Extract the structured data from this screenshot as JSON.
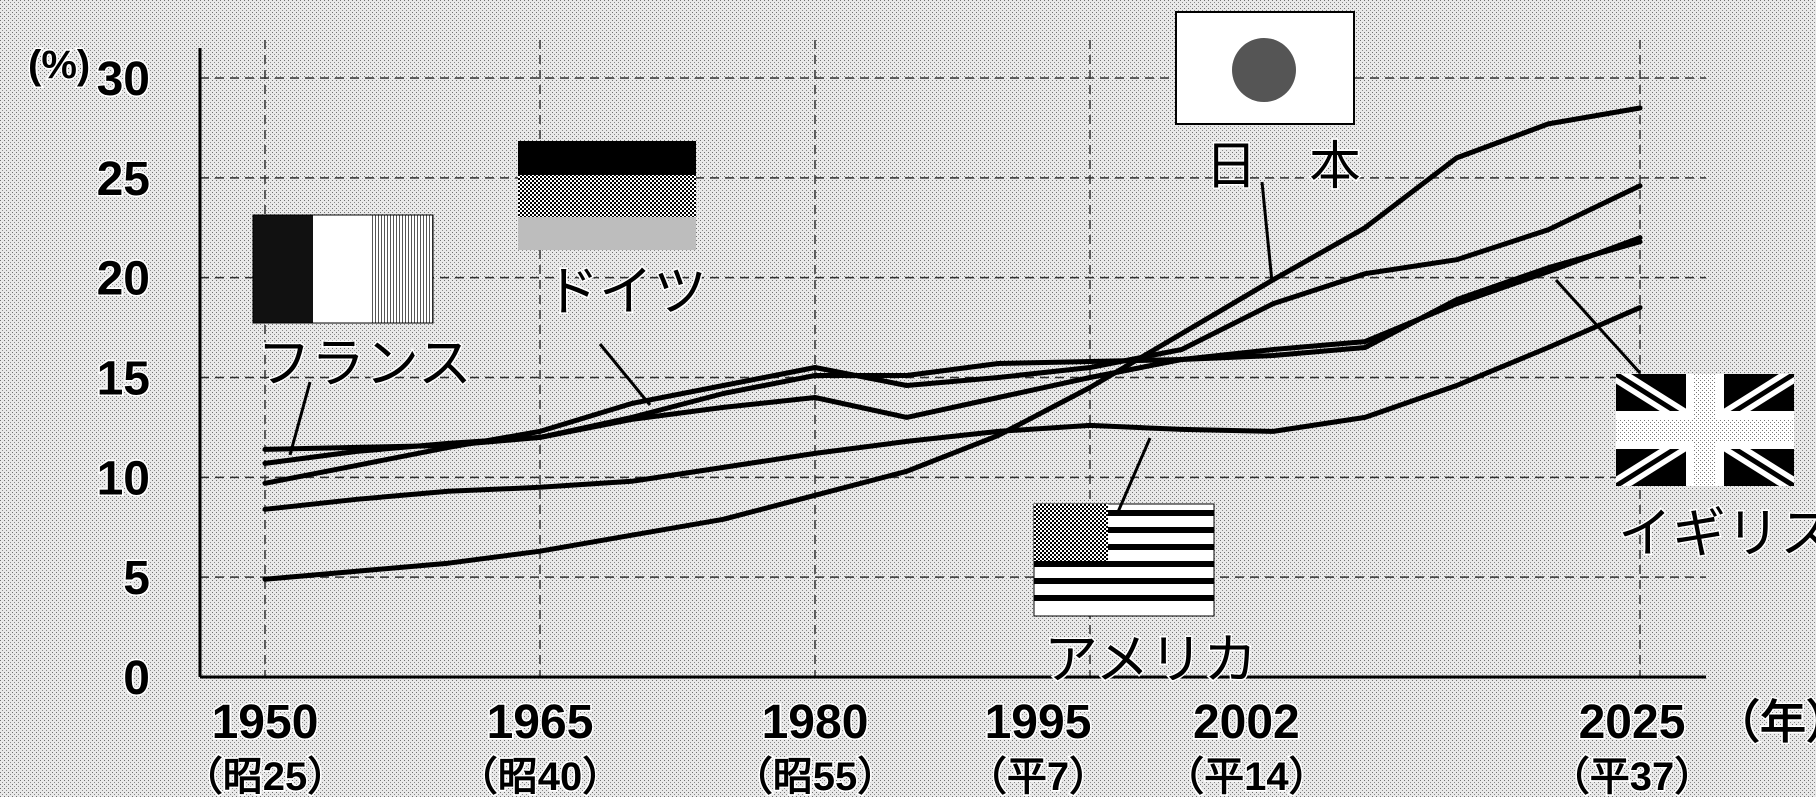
{
  "chart_data": {
    "type": "line",
    "ylabel": "(%)",
    "xlabel_unit": "（年）",
    "ylim": [
      0,
      30
    ],
    "y_ticks": [
      "0",
      "5",
      "10",
      "15",
      "20",
      "25",
      "30"
    ],
    "x_ticks": [
      {
        "year": "1950",
        "era": "（昭25）"
      },
      {
        "year": "1965",
        "era": "（昭40）"
      },
      {
        "year": "1980",
        "era": "（昭55）"
      },
      {
        "year": "1995",
        "era": "（平7）"
      },
      {
        "year": "2002",
        "era": "（平14）"
      },
      {
        "year": "2025",
        "era": "（平37）"
      }
    ],
    "grid": true,
    "series": [
      {
        "name": "日　本",
        "points": [
          [
            1950,
            4.9
          ],
          [
            1955,
            5.3
          ],
          [
            1960,
            5.7
          ],
          [
            1965,
            6.3
          ],
          [
            1970,
            7.1
          ],
          [
            1975,
            7.9
          ],
          [
            1980,
            9.1
          ],
          [
            1985,
            10.3
          ],
          [
            1990,
            12.1
          ],
          [
            1995,
            14.5
          ],
          [
            2000,
            17.2
          ],
          [
            2005,
            19.9
          ],
          [
            2010,
            22.5
          ],
          [
            2015,
            26.0
          ],
          [
            2020,
            27.7
          ],
          [
            2025,
            28.5
          ]
        ]
      },
      {
        "name": "ドイツ",
        "points": [
          [
            1950,
            9.7
          ],
          [
            1955,
            10.6
          ],
          [
            1960,
            11.5
          ],
          [
            1965,
            12.3
          ],
          [
            1970,
            13.7
          ],
          [
            1975,
            14.6
          ],
          [
            1980,
            15.5
          ],
          [
            1985,
            14.6
          ],
          [
            1990,
            15.0
          ],
          [
            1995,
            15.5
          ],
          [
            2000,
            16.4
          ],
          [
            2005,
            18.7
          ],
          [
            2010,
            20.2
          ],
          [
            2015,
            20.9
          ],
          [
            2020,
            22.4
          ],
          [
            2025,
            24.6
          ]
        ]
      },
      {
        "name": "フランス",
        "points": [
          [
            1950,
            11.4
          ],
          [
            1955,
            11.5
          ],
          [
            1960,
            11.6
          ],
          [
            1965,
            12.0
          ],
          [
            1970,
            12.9
          ],
          [
            1975,
            13.5
          ],
          [
            1980,
            14.0
          ],
          [
            1985,
            13.0
          ],
          [
            1990,
            14.0
          ],
          [
            1995,
            15.0
          ],
          [
            2000,
            15.9
          ],
          [
            2005,
            16.4
          ],
          [
            2010,
            16.8
          ],
          [
            2015,
            18.7
          ],
          [
            2020,
            20.3
          ],
          [
            2025,
            22.0
          ]
        ]
      },
      {
        "name": "イギリス",
        "points": [
          [
            1950,
            10.7
          ],
          [
            1955,
            11.3
          ],
          [
            1960,
            11.7
          ],
          [
            1965,
            12.0
          ],
          [
            1970,
            13.0
          ],
          [
            1975,
            14.2
          ],
          [
            1980,
            15.1
          ],
          [
            1985,
            15.1
          ],
          [
            1990,
            15.7
          ],
          [
            1995,
            15.8
          ],
          [
            2000,
            15.9
          ],
          [
            2005,
            16.1
          ],
          [
            2010,
            16.5
          ],
          [
            2015,
            18.9
          ],
          [
            2020,
            20.5
          ],
          [
            2025,
            21.8
          ]
        ]
      },
      {
        "name": "アメリカ",
        "points": [
          [
            1950,
            8.4
          ],
          [
            1955,
            8.9
          ],
          [
            1960,
            9.3
          ],
          [
            1965,
            9.5
          ],
          [
            1970,
            9.8
          ],
          [
            1975,
            10.5
          ],
          [
            1980,
            11.2
          ],
          [
            1985,
            11.8
          ],
          [
            1990,
            12.3
          ],
          [
            1995,
            12.6
          ],
          [
            2000,
            12.4
          ],
          [
            2005,
            12.3
          ],
          [
            2010,
            13.0
          ],
          [
            2015,
            14.6
          ],
          [
            2020,
            16.5
          ],
          [
            2025,
            18.5
          ]
        ]
      }
    ]
  }
}
